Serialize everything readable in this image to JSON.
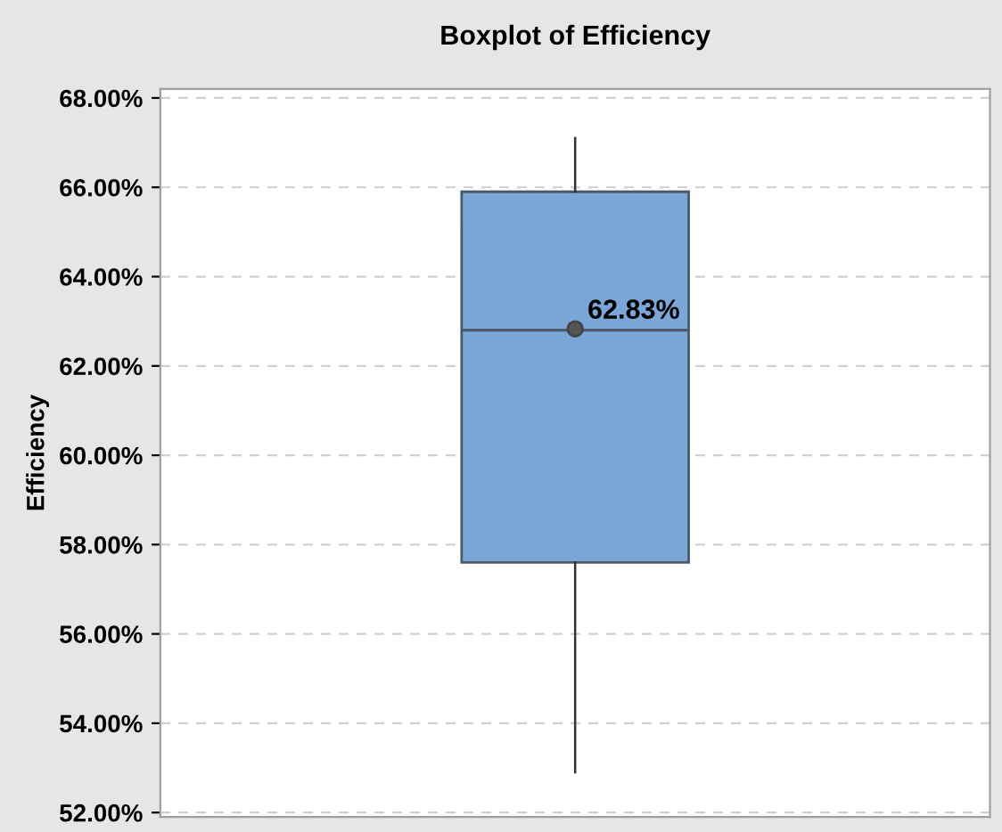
{
  "chart_data": {
    "type": "box",
    "title": "Boxplot of Efficiency",
    "ylabel": "Efficiency",
    "categories": [
      null
    ],
    "boxes": [
      {
        "low": 52.9,
        "q1": 57.6,
        "median": 62.8,
        "q3": 65.9,
        "high": 67.1,
        "mean": 62.83
      }
    ],
    "color": "#7ba6d8",
    "annotations": [
      {
        "text": "62.83%",
        "y": 62.83
      }
    ],
    "ylim": [
      51.9,
      68.2
    ],
    "yticks": [
      {
        "value": 52,
        "label": "52.00%"
      },
      {
        "value": 54,
        "label": "54.00%"
      },
      {
        "value": 56,
        "label": "56.00%"
      },
      {
        "value": 58,
        "label": "58.00%"
      },
      {
        "value": 60,
        "label": "60.00%"
      },
      {
        "value": 62,
        "label": "62.00%"
      },
      {
        "value": 64,
        "label": "64.00%"
      },
      {
        "value": 66,
        "label": "66.00%"
      },
      {
        "value": 68,
        "label": "68.00%"
      }
    ],
    "grid": "y"
  }
}
